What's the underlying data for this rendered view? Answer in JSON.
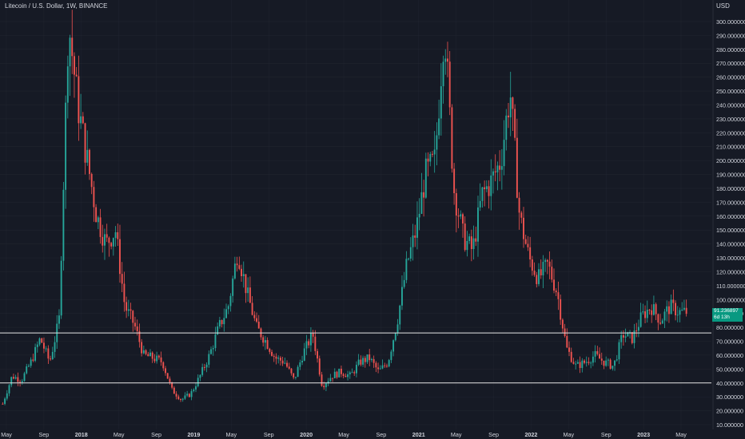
{
  "header": {
    "title": "Litecoin / U.S. Dollar, 1W, BINANCE",
    "unit": "USD"
  },
  "price_badge": {
    "price": "91.236897",
    "countdown": "6d 13h"
  },
  "colors": {
    "background": "#161a25",
    "up": "#26a69a",
    "down": "#ef5350",
    "grid": "#2a2e39",
    "text": "#d1d4dc",
    "hline": "#e6e6e6",
    "badge": "#089981"
  },
  "chart_data": {
    "type": "candlestick",
    "title": "Litecoin / U.S. Dollar, 1W, BINANCE",
    "ylabel": "USD",
    "ylim": [
      5,
      305
    ],
    "y_ticks": [
      10,
      20,
      30,
      40,
      50,
      60,
      70,
      80,
      90,
      100,
      110,
      120,
      130,
      140,
      150,
      160,
      170,
      180,
      190,
      200,
      210,
      220,
      230,
      240,
      250,
      260,
      270,
      280,
      290,
      300
    ],
    "x_ticks": [
      "May",
      "Sep",
      "2018",
      "May",
      "Sep",
      "2019",
      "May",
      "Sep",
      "2020",
      "May",
      "Sep",
      "2021",
      "May",
      "Sep",
      "2022",
      "May",
      "Sep",
      "2023",
      "May"
    ],
    "horizontal_lines": [
      76,
      40
    ],
    "current_price": 91.236897,
    "series": [
      {
        "week": "2017-05",
        "close": 25
      },
      {
        "week": "2017-06",
        "close": 45
      },
      {
        "week": "2017-07",
        "close": 42
      },
      {
        "week": "2017-08",
        "close": 55
      },
      {
        "week": "2017-09",
        "close": 72
      },
      {
        "week": "2017-10",
        "close": 55
      },
      {
        "week": "2017-11",
        "close": 85
      },
      {
        "week": "2017-12",
        "close": 300
      },
      {
        "week": "2018-01",
        "close": 240
      },
      {
        "week": "2018-02",
        "close": 200
      },
      {
        "week": "2018-03",
        "close": 160
      },
      {
        "week": "2018-04",
        "close": 140
      },
      {
        "week": "2018-05",
        "close": 150
      },
      {
        "week": "2018-06",
        "close": 95
      },
      {
        "week": "2018-07",
        "close": 82
      },
      {
        "week": "2018-08",
        "close": 60
      },
      {
        "week": "2018-09",
        "close": 58
      },
      {
        "week": "2018-10",
        "close": 55
      },
      {
        "week": "2018-11",
        "close": 35
      },
      {
        "week": "2018-12",
        "close": 28
      },
      {
        "week": "2019-01",
        "close": 32
      },
      {
        "week": "2019-02",
        "close": 45
      },
      {
        "week": "2019-03",
        "close": 60
      },
      {
        "week": "2019-04",
        "close": 80
      },
      {
        "week": "2019-05",
        "close": 95
      },
      {
        "week": "2019-06",
        "close": 135
      },
      {
        "week": "2019-07",
        "close": 105
      },
      {
        "week": "2019-08",
        "close": 80
      },
      {
        "week": "2019-09",
        "close": 70
      },
      {
        "week": "2019-10",
        "close": 58
      },
      {
        "week": "2019-11",
        "close": 55
      },
      {
        "week": "2019-12",
        "close": 42
      },
      {
        "week": "2020-01",
        "close": 62
      },
      {
        "week": "2020-02",
        "close": 75
      },
      {
        "week": "2020-03",
        "close": 38
      },
      {
        "week": "2020-04",
        "close": 45
      },
      {
        "week": "2020-05",
        "close": 48
      },
      {
        "week": "2020-06",
        "close": 45
      },
      {
        "week": "2020-07",
        "close": 55
      },
      {
        "week": "2020-08",
        "close": 58
      },
      {
        "week": "2020-09",
        "close": 48
      },
      {
        "week": "2020-10",
        "close": 55
      },
      {
        "week": "2020-11",
        "close": 85
      },
      {
        "week": "2020-12",
        "close": 125
      },
      {
        "week": "2021-01",
        "close": 150
      },
      {
        "week": "2021-02",
        "close": 190
      },
      {
        "week": "2021-03",
        "close": 200
      },
      {
        "week": "2021-04",
        "close": 300
      },
      {
        "week": "2021-05",
        "close": 180
      },
      {
        "week": "2021-06",
        "close": 145
      },
      {
        "week": "2021-07",
        "close": 135
      },
      {
        "week": "2021-08",
        "close": 175
      },
      {
        "week": "2021-09",
        "close": 185
      },
      {
        "week": "2021-10",
        "close": 200
      },
      {
        "week": "2021-11",
        "close": 250
      },
      {
        "week": "2021-12",
        "close": 160
      },
      {
        "week": "2022-01",
        "close": 130
      },
      {
        "week": "2022-02",
        "close": 115
      },
      {
        "week": "2022-03",
        "close": 125
      },
      {
        "week": "2022-04",
        "close": 105
      },
      {
        "week": "2022-05",
        "close": 65
      },
      {
        "week": "2022-06",
        "close": 52
      },
      {
        "week": "2022-07",
        "close": 55
      },
      {
        "week": "2022-08",
        "close": 60
      },
      {
        "week": "2022-09",
        "close": 55
      },
      {
        "week": "2022-10",
        "close": 52
      },
      {
        "week": "2022-11",
        "close": 75
      },
      {
        "week": "2022-12",
        "close": 72
      },
      {
        "week": "2023-01",
        "close": 88
      },
      {
        "week": "2023-02",
        "close": 95
      },
      {
        "week": "2023-03",
        "close": 85
      },
      {
        "week": "2023-04",
        "close": 95
      },
      {
        "week": "2023-05",
        "close": 91
      }
    ]
  }
}
